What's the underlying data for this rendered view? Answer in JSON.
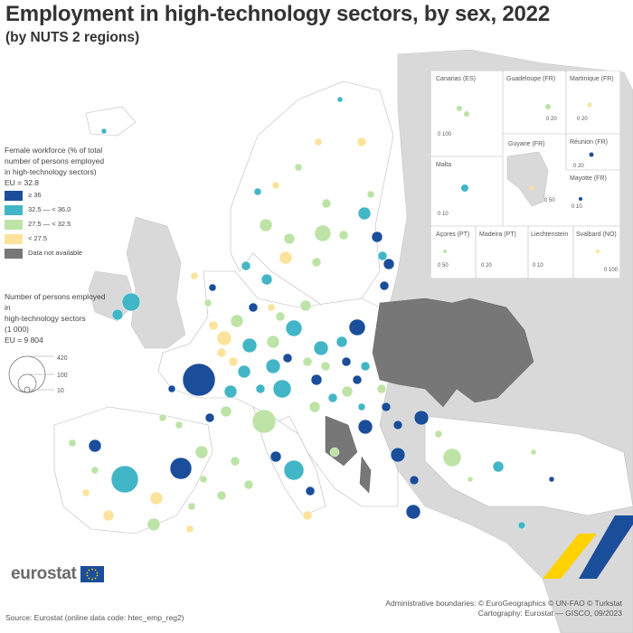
{
  "title": "Employment in high-technology sectors, by sex, 2022",
  "subtitle": "(by NUTS 2 regions)",
  "legend_colour": {
    "title_lines": [
      "Female workforce (% of total",
      "number of persons employed",
      "in high-technology sectors)"
    ],
    "eu_value": "EU = 32.8",
    "classes": [
      {
        "label": "≥ 36",
        "color": "#1a4e9a"
      },
      {
        "label": "32.5 — < 36.0",
        "color": "#42b6c6"
      },
      {
        "label": "27.5 — < 32.5",
        "color": "#bde3a6"
      },
      {
        "label": "< 27.5",
        "color": "#fbe39b"
      },
      {
        "label": "Data not available",
        "color": "#777777"
      }
    ]
  },
  "legend_size": {
    "title_lines": [
      "Number of persons employed in",
      "high-technology sectors",
      "(1 000)"
    ],
    "eu_value": "EU = 9 804",
    "sizes": [
      "420",
      "100",
      "10"
    ]
  },
  "insets": {
    "canarias": "Canarias (ES)",
    "guadeloupe": "Guadeloupe (FR)",
    "martinique": "Martinique (FR)",
    "guyane": "Guyane (FR)",
    "reunion": "Réunion (FR)",
    "malta": "Malta",
    "mayotte": "Mayotte (FR)",
    "acores": "Açores (PT)",
    "madeira": "Madeira (PT)",
    "liechtenstein": "Liechtenstein",
    "svalbard": "Svalbard (NO)",
    "scale_canarias": "0  100",
    "scale_guadeloupe": "0  20",
    "scale_martinique": "0  20",
    "scale_guyane": "0  50",
    "scale_reunion": "0  20",
    "scale_malta": "0  10",
    "scale_mayotte": "0  10",
    "scale_acores": "0  50",
    "scale_madeira": "0  20",
    "scale_liechtenstein": "0  10",
    "scale_svalbard": "0  100"
  },
  "logo": "eurostat",
  "source": "Source: Eurostat (online data code: htec_emp_reg2)",
  "credits": [
    "Administrative boundaries: © EuroGeographics © UN-FAO © Turkstat",
    "Cartography: Eurostat — GISCO, 09/2023"
  ],
  "colors": {
    "land": "#ffffff",
    "non_eu": "#d9d9d9",
    "sea": "#ffffff",
    "no_data": "#777777"
  }
}
